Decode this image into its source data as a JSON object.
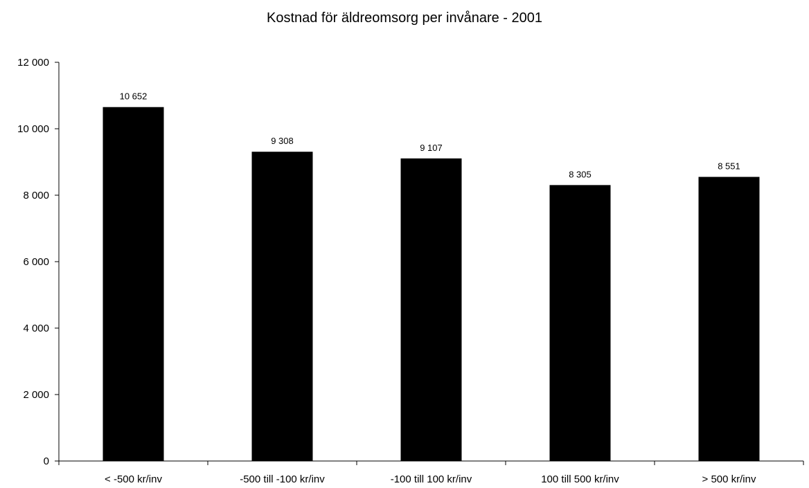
{
  "chart_data": {
    "type": "bar",
    "title": "Kostnad för äldreomsorg per invånare - 2001",
    "xlabel": "",
    "ylabel": "",
    "categories": [
      "< -500 kr/inv",
      "-500 till -100 kr/inv",
      "-100 till 100 kr/inv",
      "100 till 500 kr/inv",
      "> 500 kr/inv"
    ],
    "values": [
      10652,
      9308,
      9107,
      8305,
      8551
    ],
    "data_labels": [
      "10 652",
      "9 308",
      "9 107",
      "8 305",
      "8 551"
    ],
    "ylim": [
      0,
      12000
    ],
    "yticks": [
      0,
      2000,
      4000,
      6000,
      8000,
      10000,
      12000
    ],
    "ytick_labels": [
      "0",
      "2 000",
      "4 000",
      "6 000",
      "8 000",
      "10 000",
      "12 000"
    ],
    "grid": false,
    "legend": "none",
    "bar_color": "#000000"
  }
}
